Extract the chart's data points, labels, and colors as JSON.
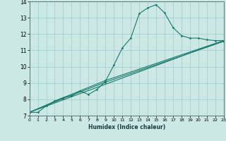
{
  "title": "",
  "xlabel": "Humidex (Indice chaleur)",
  "ylabel": "",
  "bg_color": "#cce8e4",
  "line_color": "#1a7a6e",
  "grid_color": "#99cccc",
  "xlim": [
    0,
    23
  ],
  "ylim": [
    7,
    14
  ],
  "xticks": [
    0,
    1,
    2,
    3,
    4,
    5,
    6,
    7,
    8,
    9,
    10,
    11,
    12,
    13,
    14,
    15,
    16,
    17,
    18,
    19,
    20,
    21,
    22,
    23
  ],
  "yticks": [
    7,
    8,
    9,
    10,
    11,
    12,
    13,
    14
  ],
  "series": [
    [
      0,
      7.2
    ],
    [
      1,
      7.2
    ],
    [
      2,
      7.6
    ],
    [
      3,
      7.9
    ],
    [
      4,
      8.1
    ],
    [
      5,
      8.2
    ],
    [
      6,
      8.5
    ],
    [
      7,
      8.3
    ],
    [
      8,
      8.6
    ],
    [
      9,
      9.1
    ],
    [
      10,
      10.1
    ],
    [
      11,
      11.15
    ],
    [
      12,
      11.75
    ],
    [
      13,
      13.25
    ],
    [
      14,
      13.6
    ],
    [
      15,
      13.8
    ],
    [
      16,
      13.3
    ],
    [
      17,
      12.4
    ],
    [
      18,
      11.9
    ],
    [
      19,
      11.75
    ],
    [
      20,
      11.75
    ],
    [
      21,
      11.65
    ],
    [
      22,
      11.6
    ],
    [
      23,
      11.6
    ]
  ],
  "series2": [
    [
      0,
      7.2
    ],
    [
      23,
      11.6
    ]
  ],
  "series3": [
    [
      0,
      7.2
    ],
    [
      4,
      8.1
    ],
    [
      9,
      9.15
    ],
    [
      23,
      11.6
    ]
  ],
  "series4": [
    [
      0,
      7.2
    ],
    [
      4,
      8.05
    ],
    [
      9,
      9.05
    ],
    [
      23,
      11.55
    ]
  ]
}
